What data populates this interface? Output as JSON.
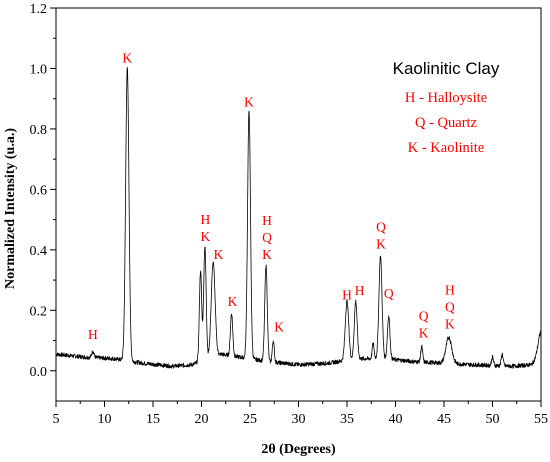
{
  "chart_data": {
    "type": "line",
    "xlabel": "2θ (Degrees)",
    "ylabel": "Normalized Intensity (u.a.)",
    "xlim": [
      5,
      55
    ],
    "ylim": [
      -0.1,
      1.2
    ],
    "xticks": [
      5,
      10,
      15,
      20,
      25,
      30,
      35,
      40,
      45,
      50,
      55
    ],
    "xtick_labels": [
      "5",
      "10",
      "15",
      "20",
      "25",
      "30",
      "35",
      "40",
      "45",
      "50",
      "55"
    ],
    "yticks": [
      0.0,
      0.2,
      0.4,
      0.6,
      0.8,
      1.0,
      1.2
    ],
    "ytick_labels": [
      "0.0",
      "0.2",
      "0.4",
      "0.6",
      "0.8",
      "1.0",
      "1.2"
    ],
    "legend": {
      "title": "Kaolinitic Clay",
      "entries": [
        "H - Halloysite",
        "Q - Quartz",
        "K - Kaolinite"
      ],
      "position": "top-right"
    },
    "baseline": [
      [
        5,
        0.055
      ],
      [
        8,
        0.045
      ],
      [
        11,
        0.04
      ],
      [
        14,
        0.025
      ],
      [
        17,
        0.015
      ],
      [
        19,
        0.02
      ],
      [
        22,
        0.055
      ],
      [
        24,
        0.045
      ],
      [
        27,
        0.03
      ],
      [
        30,
        0.02
      ],
      [
        33,
        0.025
      ],
      [
        36,
        0.04
      ],
      [
        39,
        0.04
      ],
      [
        42,
        0.03
      ],
      [
        45,
        0.025
      ],
      [
        48,
        0.02
      ],
      [
        52,
        0.015
      ],
      [
        54,
        0.02
      ],
      [
        55,
        0.05
      ]
    ],
    "peaks": [
      {
        "x": 8.8,
        "y": 0.065,
        "w": 0.12
      },
      {
        "x": 12.35,
        "y": 1.0,
        "w": 0.17
      },
      {
        "x": 19.9,
        "y": 0.33,
        "w": 0.12
      },
      {
        "x": 20.35,
        "y": 0.41,
        "w": 0.13
      },
      {
        "x": 21.2,
        "y": 0.36,
        "w": 0.2
      },
      {
        "x": 23.1,
        "y": 0.19,
        "w": 0.12
      },
      {
        "x": 24.9,
        "y": 0.86,
        "w": 0.15
      },
      {
        "x": 26.65,
        "y": 0.35,
        "w": 0.13
      },
      {
        "x": 27.4,
        "y": 0.1,
        "w": 0.1
      },
      {
        "x": 35.0,
        "y": 0.23,
        "w": 0.18
      },
      {
        "x": 35.9,
        "y": 0.23,
        "w": 0.15
      },
      {
        "x": 37.7,
        "y": 0.09,
        "w": 0.1
      },
      {
        "x": 38.45,
        "y": 0.38,
        "w": 0.16
      },
      {
        "x": 39.3,
        "y": 0.18,
        "w": 0.13
      },
      {
        "x": 42.7,
        "y": 0.08,
        "w": 0.1
      },
      {
        "x": 45.5,
        "y": 0.11,
        "w": 0.3
      },
      {
        "x": 50.0,
        "y": 0.045,
        "w": 0.1
      },
      {
        "x": 51.0,
        "y": 0.055,
        "w": 0.1
      },
      {
        "x": 55.0,
        "y": 0.13,
        "w": 0.3
      }
    ],
    "annotations": [
      {
        "x": 8.8,
        "lines": [
          "H"
        ],
        "bottom_y": 0.105
      },
      {
        "x": 12.35,
        "lines": [
          "K"
        ],
        "bottom_y": 1.02
      },
      {
        "x": 20.4,
        "lines": [
          "H",
          "K"
        ],
        "bottom_y": 0.43
      },
      {
        "x": 21.75,
        "lines": [
          "K"
        ],
        "bottom_y": 0.37
      },
      {
        "x": 23.2,
        "lines": [
          "K"
        ],
        "bottom_y": 0.215
      },
      {
        "x": 24.9,
        "lines": [
          "K"
        ],
        "bottom_y": 0.875
      },
      {
        "x": 26.75,
        "lines": [
          "H",
          "Q",
          "K"
        ],
        "bottom_y": 0.37
      },
      {
        "x": 28.0,
        "lines": [
          "K"
        ],
        "bottom_y": 0.13
      },
      {
        "x": 35.0,
        "lines": [
          "H"
        ],
        "bottom_y": 0.235
      },
      {
        "x": 36.3,
        "lines": [
          "H"
        ],
        "bottom_y": 0.25
      },
      {
        "x": 38.5,
        "lines": [
          "Q",
          "K"
        ],
        "bottom_y": 0.405
      },
      {
        "x": 39.3,
        "lines": [
          "Q"
        ],
        "bottom_y": 0.24
      },
      {
        "x": 42.9,
        "lines": [
          "Q",
          "K"
        ],
        "bottom_y": 0.11
      },
      {
        "x": 45.6,
        "lines": [
          "H",
          "Q",
          "K"
        ],
        "bottom_y": 0.14
      }
    ]
  }
}
